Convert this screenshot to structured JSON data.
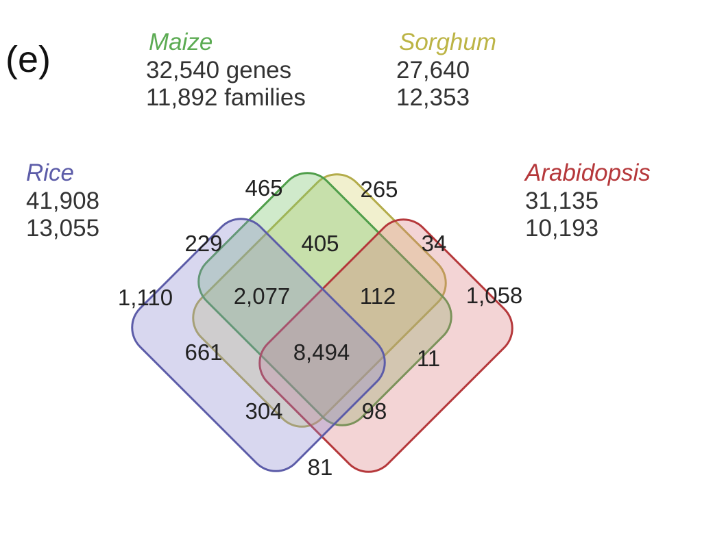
{
  "panel_label": "(e)",
  "sets": {
    "maize": {
      "name": "Maize",
      "line1": "32,540 genes",
      "line2": "11,892 families",
      "color": "#5cab53"
    },
    "sorghum": {
      "name": "Sorghum",
      "line1": "27,640",
      "line2": "12,353",
      "color": "#bcb445"
    },
    "rice": {
      "name": "Rice",
      "line1": "41,908",
      "line2": "13,055",
      "color": "#5c5ca8"
    },
    "arabidopsis": {
      "name": "Arabidopsis",
      "line1": "31,135",
      "line2": "10,193",
      "color": "#b5383b"
    }
  },
  "regions": [
    {
      "key": "maize_only",
      "value": "465"
    },
    {
      "key": "sorghum_only",
      "value": "265"
    },
    {
      "key": "rice_maize",
      "value": "229"
    },
    {
      "key": "maize_sorghum",
      "value": "405"
    },
    {
      "key": "sorghum_arabidopsis",
      "value": "34"
    },
    {
      "key": "rice_only",
      "value": "1,110"
    },
    {
      "key": "rice_maize_sorghum",
      "value": "2,077"
    },
    {
      "key": "maize_sorghum_arabidopsis",
      "value": "112"
    },
    {
      "key": "arabidopsis_only",
      "value": "1,058"
    },
    {
      "key": "rice_sorghum",
      "value": "661"
    },
    {
      "key": "all_four",
      "value": "8,494"
    },
    {
      "key": "maize_arabidopsis",
      "value": "11"
    },
    {
      "key": "rice_sorghum_arabidopsis",
      "value": "304"
    },
    {
      "key": "rice_maize_arabidopsis",
      "value": "98"
    },
    {
      "key": "rice_arabidopsis",
      "value": "81"
    }
  ]
}
